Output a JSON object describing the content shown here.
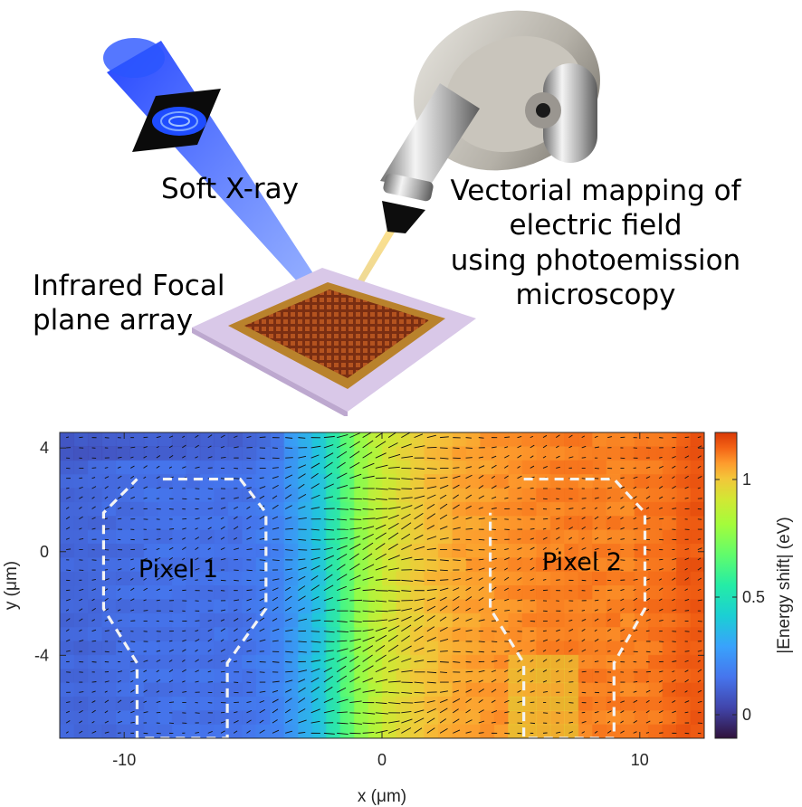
{
  "illustration": {
    "soft_xray_label": "Soft X-ray",
    "fpa_label": [
      "Infrared Focal",
      "plane array"
    ],
    "peem_label": [
      "Vectorial mapping of",
      "electric field",
      "using photoemission",
      "microscopy"
    ],
    "icons": [
      "xray-beam-icon",
      "zone-plate-icon",
      "focal-plane-array-chip-icon",
      "photoemission-microscope-icon"
    ]
  },
  "chart_data": {
    "type": "heatmap",
    "overlay": "quiver",
    "title": "",
    "xlabel": "x (μm)",
    "ylabel": "y (μm)",
    "colorbar_label": "|Energy shift| (eV)",
    "colormap": "turbo",
    "xlim": [
      -12.5,
      12.5
    ],
    "ylim": [
      -7.2,
      4.6
    ],
    "clim": [
      -0.1,
      1.2
    ],
    "xticks": [
      -10,
      0,
      10
    ],
    "xtick_labels": [
      "-10",
      "0",
      "10"
    ],
    "yticks": [
      4,
      0,
      -4
    ],
    "ytick_labels": [
      "4",
      "0",
      "-4"
    ],
    "colorbar_ticks": [
      0,
      0.5,
      1
    ],
    "colorbar_tick_labels": [
      "0",
      "0.5",
      "1"
    ],
    "x": [
      -11.7,
      -10.0,
      -8.5,
      -7.0,
      -5.5,
      -4.0,
      -2.5,
      -1.5,
      -1.0,
      0.0,
      1.5,
      3.0,
      5.0,
      6.5,
      8.0,
      9.5,
      11.0,
      11.9
    ],
    "energy_shift_profile_eV": [
      0.12,
      0.14,
      0.15,
      0.15,
      0.15,
      0.2,
      0.38,
      0.62,
      0.75,
      0.9,
      1.0,
      1.05,
      1.08,
      1.1,
      1.1,
      1.1,
      1.12,
      1.15
    ],
    "annotations": [
      {
        "text": "Pixel 1",
        "x": -6.5,
        "y": 0
      },
      {
        "text": "Pixel 2",
        "x": 7.5,
        "y": 0
      }
    ],
    "pixel_outlines": [
      {
        "name": "Pixel 1",
        "points": [
          [
            -8.5,
            2.8
          ],
          [
            -5.5,
            2.8
          ],
          [
            -4.5,
            1.5
          ],
          [
            -4.5,
            -2.2
          ],
          [
            -6.0,
            -4.3
          ],
          [
            -6.0,
            -7.2
          ],
          [
            -9.5,
            -7.2
          ],
          [
            -9.5,
            -4.3
          ],
          [
            -10.8,
            -2.2
          ],
          [
            -10.8,
            1.5
          ],
          [
            -9.5,
            2.8
          ]
        ]
      },
      {
        "name": "Pixel 2",
        "points": [
          [
            5.5,
            2.8
          ],
          [
            9.0,
            2.8
          ],
          [
            10.2,
            1.5
          ],
          [
            10.2,
            -2.2
          ],
          [
            9.0,
            -4.3
          ],
          [
            9.0,
            -7.2
          ],
          [
            5.5,
            -7.2
          ],
          [
            5.5,
            -4.3
          ],
          [
            4.2,
            -2.2
          ],
          [
            4.2,
            1.5
          ]
        ]
      }
    ]
  }
}
